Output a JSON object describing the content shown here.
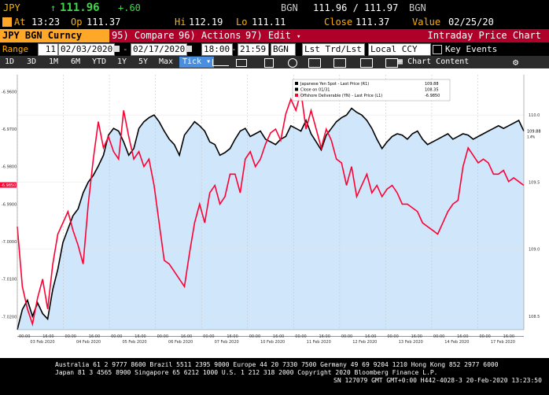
{
  "header": {
    "ticker": "JPY",
    "arrow": "↑",
    "last": "111.96",
    "change": "+.60",
    "source": "BGN",
    "bid_ask": "111.96 / 111.97",
    "source2": "BGN",
    "at_label": "At",
    "time": "13:23",
    "op_label": "Op",
    "open": "111.37",
    "hi_label": "Hi",
    "high": "112.19",
    "lo_label": "Lo",
    "low": "111.11",
    "close_label": "Close",
    "close": "111.37",
    "value_label": "Value",
    "value_date": "02/25/20"
  },
  "toolbar": {
    "security": "JPY BGN Curncy",
    "compare": "95) Compare",
    "actions": "96) Actions",
    "edit": "97) Edit",
    "title": "Intraday Price Chart"
  },
  "range": {
    "label": "Range",
    "days": "11",
    "start": "02/03/2020",
    "end": "02/17/2020",
    "t1": "18:00",
    "t2": "21:59",
    "src": "BGN",
    "field": "Lst Trd/Lst P",
    "ccy": "Local CCY",
    "key_events": "Key Events"
  },
  "periods": [
    "1D",
    "3D",
    "1M",
    "6M",
    "YTD",
    "1Y",
    "5Y",
    "Max"
  ],
  "period_mode": "Tick",
  "chart_content": "Chart Content",
  "chart_data": {
    "type": "line",
    "x_ticks": [
      "03 Feb 2020",
      "04 Feb 2020",
      "05 Feb 2020",
      "06 Feb 2020",
      "07 Feb 2020",
      "10 Feb 2020",
      "11 Feb 2020",
      "12 Feb 2020",
      "13 Feb 2020",
      "14 Feb 2020",
      "17 Feb 2020"
    ],
    "time_ticks": [
      "00:00",
      "16:00"
    ],
    "y_right": {
      "ticks": [
        "108.5",
        "109.0",
        "109.5",
        "110.0"
      ],
      "ylim": [
        108.4,
        110.3
      ]
    },
    "y_left": {
      "ticks": [
        "-6.9600",
        "-6.9700",
        "-6.9800",
        "-6.9900",
        "-7.0000",
        "-7.0100",
        "-7.0200"
      ],
      "ylim": [
        -7.0235,
        -6.9555
      ]
    },
    "legend": [
      {
        "name": "Japanese Yen Spot - Last Price (R1)",
        "value": "109.88",
        "color": "#000000"
      },
      {
        "name": "Close on 01/31",
        "value": "108.35",
        "color": "#000000"
      },
      {
        "name": "Offshore Deliverable (YN) - Last Price (L1)",
        "value": "-6.9850",
        "color": "#ff0033"
      }
    ],
    "last_labels": {
      "right": "109.88",
      "right_sub": "1.4%",
      "left": "-6.9850"
    },
    "series": [
      {
        "name": "Japanese Yen Spot - Last Price (R1)",
        "axis": "right",
        "color": "#000000",
        "x": [
          0,
          1,
          2,
          3,
          4,
          5,
          6,
          7,
          8,
          9,
          10,
          11,
          12,
          13,
          14,
          15,
          16,
          17,
          18,
          19,
          20,
          21,
          22,
          23,
          24,
          25,
          26,
          27,
          28,
          29,
          30,
          31,
          32,
          33,
          34,
          35,
          36,
          37,
          38,
          39,
          40,
          41,
          42,
          43,
          44,
          45,
          46,
          47,
          48,
          49,
          50,
          51,
          52,
          53,
          54,
          55,
          56,
          57,
          58,
          59,
          60,
          61,
          62,
          63,
          64,
          65,
          66,
          67,
          68,
          69,
          70,
          71,
          72,
          73,
          74,
          75,
          76,
          77,
          78,
          79,
          80,
          81,
          82,
          83,
          84,
          85,
          86,
          87,
          88,
          89,
          90,
          91,
          92,
          93,
          94,
          95,
          96,
          97,
          98,
          99,
          100
        ],
        "y": [
          108.4,
          108.55,
          108.62,
          108.5,
          108.6,
          108.52,
          108.48,
          108.7,
          108.85,
          109.05,
          109.15,
          109.25,
          109.3,
          109.42,
          109.5,
          109.55,
          109.62,
          109.7,
          109.85,
          109.9,
          109.88,
          109.8,
          109.7,
          109.75,
          109.9,
          109.95,
          109.98,
          110.0,
          109.95,
          109.88,
          109.82,
          109.78,
          109.7,
          109.85,
          109.9,
          109.95,
          109.92,
          109.88,
          109.8,
          109.78,
          109.7,
          109.72,
          109.75,
          109.82,
          109.88,
          109.9,
          109.84,
          109.86,
          109.88,
          109.82,
          109.8,
          109.78,
          109.82,
          109.84,
          109.92,
          109.9,
          109.88,
          109.96,
          109.86,
          109.8,
          109.74,
          109.85,
          109.9,
          109.95,
          109.98,
          110.0,
          110.05,
          110.02,
          110.0,
          109.96,
          109.9,
          109.82,
          109.75,
          109.8,
          109.84,
          109.86,
          109.85,
          109.82,
          109.86,
          109.88,
          109.82,
          109.78,
          109.8,
          109.82,
          109.84,
          109.86,
          109.82,
          109.84,
          109.86,
          109.85,
          109.82,
          109.84,
          109.86,
          109.88,
          109.9,
          109.92,
          109.9,
          109.92,
          109.94,
          109.96,
          109.88
        ]
      },
      {
        "name": "Offshore Deliverable (YN) - Last Price (L1)",
        "axis": "left",
        "color": "#ff0033",
        "x": [
          0,
          1,
          2,
          3,
          4,
          5,
          6,
          7,
          8,
          9,
          10,
          11,
          12,
          13,
          14,
          15,
          16,
          17,
          18,
          19,
          20,
          21,
          22,
          23,
          24,
          25,
          26,
          27,
          28,
          29,
          30,
          31,
          32,
          33,
          34,
          35,
          36,
          37,
          38,
          39,
          40,
          41,
          42,
          43,
          44,
          45,
          46,
          47,
          48,
          49,
          50,
          51,
          52,
          53,
          54,
          55,
          56,
          57,
          58,
          59,
          60,
          61,
          62,
          63,
          64,
          65,
          66,
          67,
          68,
          69,
          70,
          71,
          72,
          73,
          74,
          75,
          76,
          77,
          78,
          79,
          80,
          81,
          82,
          83,
          84,
          85,
          86,
          87,
          88,
          89,
          90,
          91,
          92,
          93,
          94,
          95,
          96,
          97,
          98,
          99,
          100
        ],
        "y": [
          -6.996,
          -7.012,
          -7.018,
          -7.022,
          -7.015,
          -7.01,
          -7.018,
          -7.006,
          -6.998,
          -6.995,
          -6.992,
          -6.997,
          -7.001,
          -7.006,
          -6.99,
          -6.978,
          -6.968,
          -6.975,
          -6.972,
          -6.976,
          -6.978,
          -6.965,
          -6.972,
          -6.978,
          -6.976,
          -6.98,
          -6.978,
          -6.985,
          -6.995,
          -7.005,
          -7.006,
          -7.008,
          -7.01,
          -7.012,
          -7.003,
          -6.995,
          -6.99,
          -6.995,
          -6.987,
          -6.985,
          -6.99,
          -6.988,
          -6.982,
          -6.982,
          -6.987,
          -6.978,
          -6.976,
          -6.98,
          -6.978,
          -6.974,
          -6.971,
          -6.97,
          -6.973,
          -6.966,
          -6.962,
          -6.965,
          -6.96,
          -6.97,
          -6.965,
          -6.97,
          -6.975,
          -6.97,
          -6.973,
          -6.978,
          -6.979,
          -6.985,
          -6.98,
          -6.988,
          -6.985,
          -6.982,
          -6.987,
          -6.985,
          -6.988,
          -6.986,
          -6.985,
          -6.987,
          -6.99,
          -6.99,
          -6.991,
          -6.992,
          -6.995,
          -6.996,
          -6.997,
          -6.998,
          -6.995,
          -6.992,
          -6.99,
          -6.989,
          -6.98,
          -6.975,
          -6.977,
          -6.979,
          -6.978,
          -6.979,
          -6.982,
          -6.982,
          -6.981,
          -6.984,
          -6.983,
          -6.984,
          -6.985
        ]
      }
    ],
    "close_line": {
      "value": 108.35,
      "axis": "right"
    }
  },
  "footer": {
    "line1": "Australia 61 2 9777 8600 Brazil 5511 2395 9000 Europe 44 20 7330 7500 Germany 49 69 9204 1210 Hong Kong 852 2977 6000",
    "line2": "Japan 81 3 4565 8900         Singapore 65 6212 1000         U.S. 1 212 318 2000         Copyright 2020 Bloomberg Finance L.P.",
    "line3": "SN 127079 GMT  GMT+0:00 H442-4028-3 20-Feb-2020 13:23:50"
  },
  "colors": {
    "amber": "#ffb000",
    "green": "#3fd84a",
    "tag": "#ffa726",
    "redbar": "#b0002a",
    "area": "#cfe6fb"
  }
}
